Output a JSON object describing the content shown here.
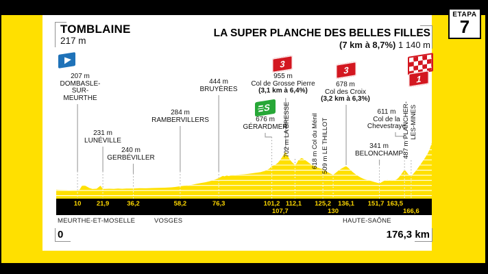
{
  "header": {
    "etapa_label": "ETAPA",
    "etapa_number": "7"
  },
  "start": {
    "name": "TOMBLAINE",
    "elevation": "217 m"
  },
  "finish": {
    "name": "LA SUPER PLANCHE DES BELLES FILLES",
    "gradient": "(7 km à 8,7%)",
    "elevation": "1 140 m"
  },
  "badges": {
    "sprint": "S",
    "cat3": "3",
    "cat1": "1"
  },
  "regions": [
    "MEURTHE-ET-MOSELLE",
    "VOSGES",
    "HAUTE-SAÔNE"
  ],
  "footer": {
    "start_km": "0",
    "total_distance": "176,3 km"
  },
  "colors": {
    "yellow": "#ffe000",
    "tick_yellow": "#ffd800",
    "red": "#d31720",
    "green": "#27a737",
    "blue": "#1f72b8",
    "black": "#000000"
  },
  "waypoints": [
    {
      "id": "dombasle",
      "km": 10,
      "tick": "10",
      "row": 1,
      "kind": "town",
      "ev": "207 m",
      "l1": "DOMBASLE-",
      "l2": "SUR-",
      "l3": "MEURTHE"
    },
    {
      "id": "luneville",
      "km": 21.9,
      "tick": "21,9",
      "row": 1,
      "kind": "town",
      "ev": "231 m",
      "l1": "LUNÉVILLE"
    },
    {
      "id": "gerbeviller",
      "km": 36.2,
      "tick": "36,2",
      "row": 1,
      "kind": "town",
      "ev": "240 m",
      "l1": "GERBÉVILLER"
    },
    {
      "id": "rambervillers",
      "km": 58.2,
      "tick": "58,2",
      "row": 1,
      "kind": "town",
      "ev": "284 m",
      "l1": "RAMBERVILLERS"
    },
    {
      "id": "bruyeres",
      "km": 76.3,
      "tick": "76,3",
      "row": 1,
      "kind": "town",
      "ev": "444 m",
      "l1": "BRUYÈRES"
    },
    {
      "id": "gerardmer",
      "km": 101.2,
      "tick": "101,2",
      "row": 1,
      "kind": "intermediate-sprint",
      "ev": "676 m",
      "l1": "GÉRARDMER"
    },
    {
      "id": "grosse-pierre",
      "km": 107.7,
      "tick": "107,7",
      "row": 2,
      "kind": "col-cat-3",
      "ev": "955 m",
      "l1": "Col de Grosse Pierre",
      "grad": "(3,1 km à 6,4%)"
    },
    {
      "id": "la-bresse",
      "km": 112.1,
      "tick": "112,1",
      "row": 1,
      "kind": "town",
      "v1": "702 m LA BRESSE"
    },
    {
      "id": "col-du-menil",
      "km": 125.2,
      "tick": "125,2",
      "row": 1,
      "kind": "col",
      "v1": "618 m Col du Ménil"
    },
    {
      "id": "le-thillot",
      "km": 130,
      "tick": "130",
      "row": 2,
      "kind": "town",
      "v1": "509 m LE THILLOT"
    },
    {
      "id": "col-des-croix",
      "km": 136.1,
      "tick": "136,1",
      "row": 1,
      "kind": "col-cat-3",
      "ev": "678 m",
      "l1": "Col des Croix",
      "grad": "(3,2 km à 6,3%)"
    },
    {
      "id": "belonchamp",
      "km": 151.7,
      "tick": "151,7",
      "row": 1,
      "kind": "town",
      "ev": "341 m",
      "l1": "BELONCHAMP"
    },
    {
      "id": "chevestraye",
      "km": 163.5,
      "tick": "163,5",
      "row": 1,
      "kind": "col",
      "ev": "611 m",
      "l1": "Col de la",
      "l2": "Chevestraye"
    },
    {
      "id": "plancher",
      "km": 166.6,
      "tick": "166,6",
      "row": 2,
      "kind": "town",
      "v1": "487 m PLANCHER-",
      "v2": "LES-MINES"
    }
  ],
  "chart_data": {
    "type": "area",
    "title": "Etapa 7 · Tomblaine → La Super Planche des Belles Filles",
    "xlabel": "km",
    "ylabel": "m",
    "x_range": [
      0,
      176.3
    ],
    "y_range": [
      0,
      1200
    ],
    "grid": "horizontal lines every 100 m, clipped to profile",
    "profile": [
      [
        0,
        217
      ],
      [
        2,
        213
      ],
      [
        5,
        210
      ],
      [
        8,
        206
      ],
      [
        10,
        207
      ],
      [
        11,
        218
      ],
      [
        12,
        288
      ],
      [
        13,
        310
      ],
      [
        14,
        286
      ],
      [
        15.5,
        250
      ],
      [
        17,
        230
      ],
      [
        19,
        236
      ],
      [
        20.3,
        278
      ],
      [
        20.8,
        296
      ],
      [
        21.4,
        258
      ],
      [
        21.9,
        231
      ],
      [
        23,
        233
      ],
      [
        25,
        236
      ],
      [
        27,
        232
      ],
      [
        29,
        238
      ],
      [
        31,
        234
      ],
      [
        33,
        239
      ],
      [
        36.2,
        240
      ],
      [
        39,
        246
      ],
      [
        42,
        243
      ],
      [
        45,
        249
      ],
      [
        48,
        251
      ],
      [
        51,
        256
      ],
      [
        54,
        262
      ],
      [
        56,
        270
      ],
      [
        58.2,
        284
      ],
      [
        60,
        292
      ],
      [
        62,
        303
      ],
      [
        64,
        315
      ],
      [
        66,
        332
      ],
      [
        68,
        348
      ],
      [
        70,
        362
      ],
      [
        72,
        382
      ],
      [
        74,
        408
      ],
      [
        75.5,
        430
      ],
      [
        76.3,
        444
      ],
      [
        77.3,
        468
      ],
      [
        78.2,
        488
      ],
      [
        79,
        478
      ],
      [
        80,
        494
      ],
      [
        81,
        484
      ],
      [
        82.5,
        499
      ],
      [
        84,
        504
      ],
      [
        86,
        512
      ],
      [
        88,
        518
      ],
      [
        90,
        526
      ],
      [
        92,
        538
      ],
      [
        94,
        550
      ],
      [
        96,
        562
      ],
      [
        98,
        585
      ],
      [
        99.5,
        615
      ],
      [
        100.5,
        645
      ],
      [
        101.2,
        676
      ],
      [
        102,
        692
      ],
      [
        103,
        712
      ],
      [
        104,
        742
      ],
      [
        105,
        792
      ],
      [
        106,
        852
      ],
      [
        107,
        922
      ],
      [
        107.7,
        955
      ],
      [
        108.4,
        905
      ],
      [
        109.2,
        838
      ],
      [
        110,
        788
      ],
      [
        111,
        744
      ],
      [
        112.1,
        702
      ],
      [
        112.8,
        728
      ],
      [
        113.6,
        788
      ],
      [
        114.4,
        818
      ],
      [
        115.2,
        838
      ],
      [
        116,
        820
      ],
      [
        117,
        792
      ],
      [
        118,
        762
      ],
      [
        119,
        732
      ],
      [
        120,
        702
      ],
      [
        121,
        682
      ],
      [
        122,
        662
      ],
      [
        123,
        646
      ],
      [
        124,
        632
      ],
      [
        125.2,
        618
      ],
      [
        126,
        600
      ],
      [
        127,
        572
      ],
      [
        128,
        546
      ],
      [
        129,
        526
      ],
      [
        130,
        509
      ],
      [
        130.8,
        532
      ],
      [
        131.6,
        562
      ],
      [
        132.5,
        592
      ],
      [
        133.5,
        622
      ],
      [
        134.5,
        646
      ],
      [
        135.3,
        664
      ],
      [
        136.1,
        678
      ],
      [
        137,
        648
      ],
      [
        138,
        608
      ],
      [
        139,
        568
      ],
      [
        140,
        534
      ],
      [
        141,
        504
      ],
      [
        142,
        478
      ],
      [
        143,
        454
      ],
      [
        144,
        434
      ],
      [
        145,
        418
      ],
      [
        146,
        406
      ],
      [
        147,
        396
      ],
      [
        148,
        384
      ],
      [
        149,
        371
      ],
      [
        150,
        359
      ],
      [
        151,
        349
      ],
      [
        151.7,
        341
      ],
      [
        152.5,
        356
      ],
      [
        153.5,
        382
      ],
      [
        154.5,
        402
      ],
      [
        155.5,
        407
      ],
      [
        156.5,
        398
      ],
      [
        157.5,
        406
      ],
      [
        158.5,
        401
      ],
      [
        159.5,
        412
      ],
      [
        160.5,
        442
      ],
      [
        161.5,
        492
      ],
      [
        162.5,
        552
      ],
      [
        163.5,
        611
      ],
      [
        164.3,
        572
      ],
      [
        165.2,
        522
      ],
      [
        166,
        496
      ],
      [
        166.6,
        487
      ],
      [
        167.5,
        522
      ],
      [
        168.5,
        572
      ],
      [
        169.5,
        626
      ],
      [
        170.5,
        682
      ],
      [
        171.5,
        742
      ],
      [
        172.5,
        802
      ],
      [
        173.5,
        866
      ],
      [
        174.5,
        936
      ],
      [
        175.4,
        1020
      ],
      [
        176.3,
        1140
      ]
    ]
  }
}
